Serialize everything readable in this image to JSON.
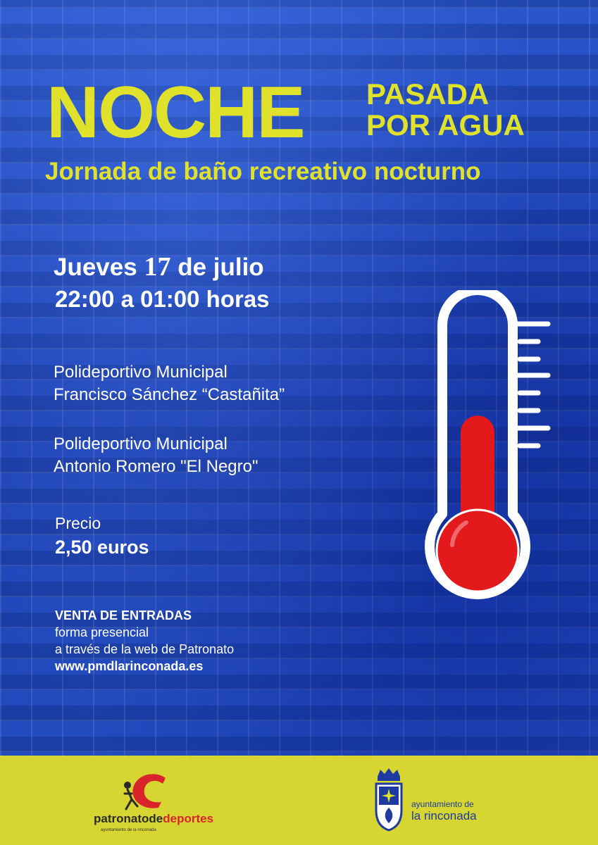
{
  "poster": {
    "title_main": "NOCHE",
    "title_side_1": "PASADA",
    "title_side_2": "POR AGUA",
    "subtitle": "Jornada de baño recreativo nocturno",
    "date": {
      "weekday": "Jueves",
      "day": "17",
      "month_part": "de julio"
    },
    "hours": "22:00 a 01:00 horas",
    "venues": [
      {
        "line1": "Polideportivo Municipal",
        "line2": "Francisco Sánchez “Castañita”"
      },
      {
        "line1": "Polideportivo Municipal",
        "line2": "Antonio Romero \"El Negro\""
      }
    ],
    "price": {
      "label": "Precio",
      "value": "2,50 euros"
    },
    "tickets": {
      "heading": "VENTA DE ENTRADAS",
      "line1": "forma presencial",
      "line2": "a través de la web de Patronato",
      "website": "www.pmdlarinconada.es"
    },
    "thermometer_icon": "thermometer-icon",
    "thermometer_level": 0.6
  },
  "footer": {
    "patronato": {
      "name_part1": "patronato",
      "name_part2": "de",
      "name_part3": "deportes",
      "sub": "ayuntamiento de la rinconada"
    },
    "ayuntamiento": {
      "small": "ayuntamiento de",
      "big": "la rinconada"
    }
  },
  "colors": {
    "background": "#1f45b8",
    "title_yellow": "#dfe12b",
    "footer_yellow": "#d6d531",
    "thermo_red": "#e3191c",
    "brand_red": "#d8242a",
    "brand_blue": "#1f3aa0"
  }
}
